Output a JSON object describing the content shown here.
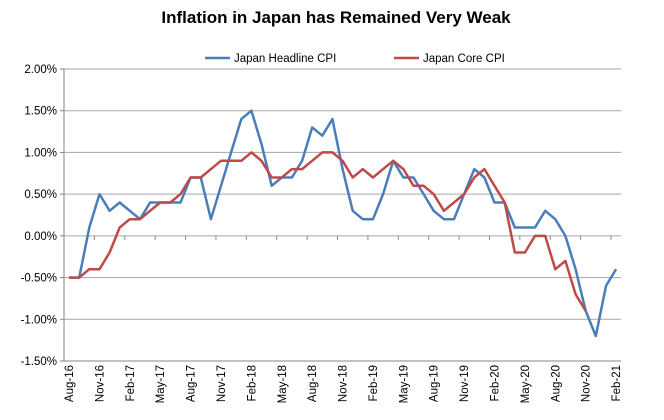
{
  "chart_data": {
    "type": "line",
    "title": "Inflation in Japan has Remained Very Weak",
    "xlabel": "",
    "ylabel": "",
    "ylim": [
      -1.5,
      2.0
    ],
    "y_ticks": [
      "2.00%",
      "1.50%",
      "1.00%",
      "0.50%",
      "0.00%",
      "-0.50%",
      "-1.00%",
      "-1.50%"
    ],
    "y_tick_values": [
      2.0,
      1.5,
      1.0,
      0.5,
      0.0,
      -0.5,
      -1.0,
      -1.5
    ],
    "grid": true,
    "legend_position": "top",
    "x_labels": [
      "Aug-16",
      "Nov-16",
      "Feb-17",
      "May-17",
      "Aug-17",
      "Nov-17",
      "Feb-18",
      "May-18",
      "Aug-18",
      "Nov-18",
      "Feb-19",
      "May-19",
      "Aug-19",
      "Nov-19",
      "Feb-20",
      "May-20",
      "Aug-20",
      "Nov-20",
      "Feb-21"
    ],
    "x_start": "Aug-16",
    "x_end": "Feb-21",
    "x_frequency": "monthly",
    "series": [
      {
        "name": "Japan Headline CPI",
        "color": "#4a7ebb",
        "values": [
          -0.5,
          -0.5,
          0.1,
          0.5,
          0.3,
          0.4,
          0.3,
          0.2,
          0.4,
          0.4,
          0.4,
          0.4,
          0.7,
          0.7,
          0.2,
          0.6,
          1.0,
          1.4,
          1.5,
          1.1,
          0.6,
          0.7,
          0.7,
          0.9,
          1.3,
          1.2,
          1.4,
          0.8,
          0.3,
          0.2,
          0.2,
          0.5,
          0.9,
          0.7,
          0.7,
          0.5,
          0.3,
          0.2,
          0.2,
          0.5,
          0.8,
          0.7,
          0.4,
          0.4,
          0.1,
          0.1,
          0.1,
          0.3,
          0.2,
          0.0,
          -0.4,
          -0.9,
          -1.2,
          -0.6,
          -0.4
        ]
      },
      {
        "name": "Japan Core CPI",
        "color": "#be4b48",
        "values": [
          -0.5,
          -0.5,
          -0.4,
          -0.4,
          -0.2,
          0.1,
          0.2,
          0.2,
          0.3,
          0.4,
          0.4,
          0.5,
          0.7,
          0.7,
          0.8,
          0.9,
          0.9,
          0.9,
          1.0,
          0.9,
          0.7,
          0.7,
          0.8,
          0.8,
          0.9,
          1.0,
          1.0,
          0.9,
          0.7,
          0.8,
          0.7,
          0.8,
          0.9,
          0.8,
          0.6,
          0.6,
          0.5,
          0.3,
          0.4,
          0.5,
          0.7,
          0.8,
          0.6,
          0.4,
          -0.2,
          -0.2,
          0.0,
          0.0,
          -0.4,
          -0.3,
          -0.7,
          -0.9
        ]
      }
    ]
  }
}
